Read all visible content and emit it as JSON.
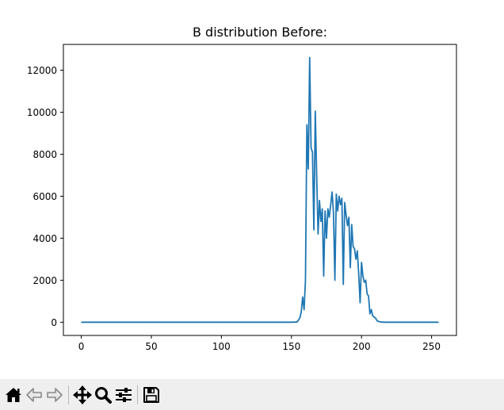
{
  "chart_data": {
    "type": "line",
    "title": "B distribution Before:",
    "xlabel": "",
    "ylabel": "",
    "xlim": [
      -12.75,
      267.75
    ],
    "ylim": [
      -630,
      13230
    ],
    "xticks": [
      0,
      50,
      100,
      150,
      200,
      250
    ],
    "yticks": [
      0,
      2000,
      4000,
      6000,
      8000,
      10000,
      12000
    ],
    "grid": false,
    "line_color": "#1f77b4",
    "series": [
      {
        "x": [
          0,
          50,
          100,
          150,
          154,
          156,
          157,
          158,
          159,
          160,
          161,
          162,
          163,
          164,
          165,
          166,
          167,
          168,
          169,
          170,
          171,
          172,
          173,
          174,
          175,
          176,
          177,
          178,
          179,
          180,
          181,
          182,
          183,
          184,
          185,
          186,
          187,
          188,
          189,
          190,
          191,
          192,
          193,
          194,
          195,
          196,
          197,
          198,
          199,
          200,
          201,
          202,
          203,
          204,
          205,
          206,
          207,
          208,
          209,
          210,
          211,
          212,
          213,
          214,
          215,
          216,
          218,
          220,
          255
        ],
        "y": [
          0,
          0,
          0,
          0,
          10,
          200,
          500,
          1200,
          600,
          2000,
          9400,
          7300,
          12600,
          8300,
          8100,
          4400,
          10050,
          7000,
          4200,
          5800,
          4800,
          5400,
          2200,
          5300,
          4000,
          5400,
          5000,
          5600,
          6200,
          5200,
          2000,
          6100,
          5300,
          6000,
          5600,
          5900,
          1800,
          5700,
          5100,
          4600,
          5000,
          2600,
          4650,
          3600,
          3500,
          3000,
          3400,
          2300,
          930,
          2850,
          2200,
          1900,
          2000,
          1350,
          1250,
          400,
          600,
          300,
          250,
          200,
          80,
          40,
          20,
          10,
          5,
          0,
          0,
          0,
          0
        ]
      }
    ]
  },
  "toolbar": {
    "icons": [
      "home-icon",
      "back-arrow-icon",
      "forward-arrow-icon",
      "pan-icon",
      "zoom-icon",
      "configure-subplots-icon",
      "save-icon"
    ]
  }
}
